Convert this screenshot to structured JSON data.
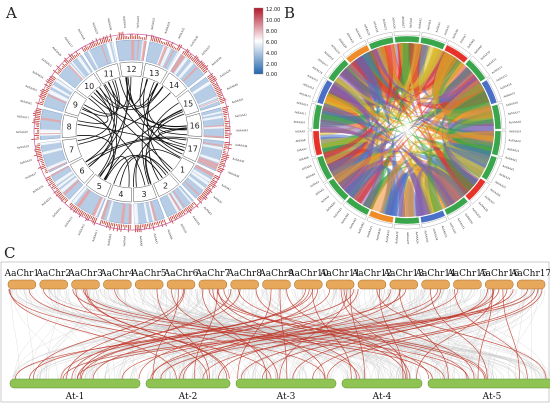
{
  "panels": {
    "a": "A",
    "b": "B",
    "c": "C"
  },
  "panel_a": {
    "segments": [
      "1",
      "2",
      "3",
      "4",
      "5",
      "6",
      "7",
      "8",
      "9",
      "10",
      "11",
      "12",
      "13",
      "14",
      "15",
      "16",
      "17"
    ],
    "legend": {
      "colors": [
        "#2166ac",
        "#ffffff",
        "#b2182b"
      ],
      "ticks": [
        "12.00",
        "10.00",
        "8.00",
        "6.00",
        "4.00",
        "2.00",
        "0.00"
      ]
    },
    "gene_labels": [
      "AaSAA1",
      "AaSAA2",
      "AaSAA3",
      "AaSAA4",
      "AaSAA5",
      "AaSAA6",
      "AaSAA7",
      "AaSAA8",
      "AaSAA9",
      "AaSAA10",
      "AaSAA11",
      "AaSAA12",
      "AaSAA13",
      "AaSAA14",
      "AaSAA15",
      "AaSAA16",
      "AaSAA17",
      "AaSAA18",
      "AaSAA19",
      "AaSAA20",
      "AaSAA21",
      "AaSAA22",
      "AaSAA23",
      "AaSAA24",
      "AaSAA25",
      "AaSAA26",
      "AaSAA27",
      "AaSAA28",
      "AaSAA29",
      "AaSAA30",
      "AaSAA31",
      "AaSAA32",
      "AaSAA33",
      "AaSAA34",
      "AaSAA35",
      "AaSAA36",
      "AaSAA37",
      "AaSAA38",
      "AaSAA39",
      "AaSAA40",
      "AaSAA41",
      "AaSAA42",
      "AaSAA43",
      "AaSAA44",
      "AaSAA45",
      "AaSAA46"
    ]
  },
  "panel_b": {
    "gene_labels": [
      "AaSAA1",
      "AaSAA2",
      "AaSAA3",
      "AaSAA4",
      "AaSAA5",
      "AaSAA6",
      "AaSAA7",
      "AaSAA8",
      "AaSAA9",
      "AaSAA10",
      "AaSAA11",
      "AaSAA12",
      "AaSAA13",
      "AaSAA14",
      "AaSAA15",
      "AaSAA16",
      "AaSAA17",
      "AaSAA18",
      "AaSAA19",
      "AaSAA20",
      "AaSAA21",
      "AaSAA22",
      "AaSAA23",
      "AaSAA24",
      "AaSAA25",
      "AaSAA26",
      "AaSAA27",
      "AaSAA28",
      "AaSAA29",
      "AaSAA30",
      "AaSAA31",
      "AaSAA32",
      "AaSAA33",
      "AaSAA34",
      "AaSAA35",
      "AaSAA36",
      "AaSAA37",
      "AaSAA38",
      "AaSAA39",
      "AaSAA40",
      "AaSAA41",
      "AaSAA42",
      "AaSAA43",
      "AaSAA44",
      "AaSAA45",
      "AaSAA46",
      "AtSAA1",
      "AtSAA2",
      "AtSAA3",
      "AtSAA4",
      "AtSAA5",
      "AtSAA6",
      "AtSAA7",
      "AtSAA8",
      "AtSAA9",
      "AtSAA10",
      "AtSAA11",
      "AtSAA12",
      "AtSAA13",
      "AtSAA14",
      "AtSAA15",
      "AtSAA16",
      "AtSAA17",
      "AtSAA18",
      "AtSAA19",
      "AtSAA20",
      "AtSAA21",
      "AtSAA22",
      "AtSAA23",
      "AtSAA24",
      "AtSAA25",
      "AtSAA26",
      "AtSAA27"
    ],
    "link_colors": [
      "#e63228",
      "#f08c28",
      "#3aa64b",
      "#4a6fc7",
      "#8a5aa8",
      "#d9c02a"
    ]
  },
  "panel_c": {
    "top_chromosomes": [
      "AaChr1",
      "AaChr2",
      "AaChr3",
      "AaChr4",
      "AaChr5",
      "AaChr6",
      "AaChr7",
      "AaChr8",
      "AaChr9",
      "AaChr10",
      "AaChr11",
      "AaChr12",
      "AaChr13",
      "AaChr14",
      "AaChr15",
      "AaChr16",
      "AaChr17"
    ],
    "bottom_chromosomes": [
      "At-1",
      "At-2",
      "At-3",
      "At-4",
      "At-5"
    ],
    "top_color": "#e8a85c",
    "bottom_color": "#8fc455",
    "highlight_color": "#c0392b",
    "background_link_color": "#c8c8c8"
  }
}
